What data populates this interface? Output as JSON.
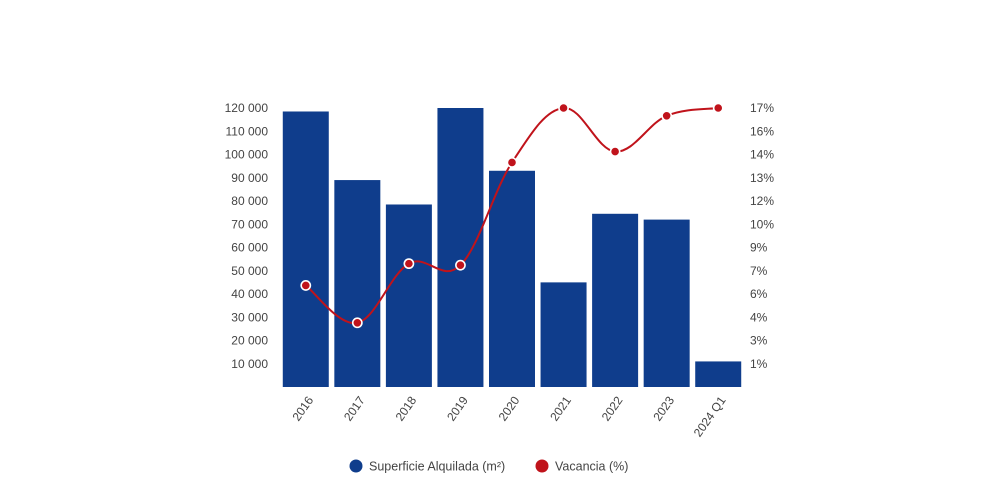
{
  "chart_data": {
    "type": "bar",
    "categories": [
      "2016",
      "2017",
      "2018",
      "2019",
      "2020",
      "2021",
      "2022",
      "2023",
      "2024 Q1"
    ],
    "series": [
      {
        "name": "Superficie Alquilada (m²)",
        "type": "bar",
        "axis": "left",
        "color": "#0f3d8c",
        "values": [
          118500,
          89000,
          78500,
          120000,
          93000,
          45000,
          74500,
          72000,
          11000
        ]
      },
      {
        "name": "Vacancia (%)",
        "type": "line",
        "axis": "right",
        "color": "#c0131b",
        "values": [
          5.6,
          3.2,
          7.0,
          6.9,
          13.5,
          17.0,
          14.2,
          16.5,
          17.0
        ]
      }
    ],
    "y_left": {
      "ticks": [
        10000,
        20000,
        30000,
        40000,
        50000,
        60000,
        70000,
        80000,
        90000,
        100000,
        110000,
        120000
      ],
      "tick_labels": [
        "10 000",
        "20 000",
        "30 000",
        "40 000",
        "50 000",
        "60 000",
        "70 000",
        "80 000",
        "90 000",
        "100 000",
        "110 000",
        "120 000"
      ],
      "ylim": [
        0,
        120000
      ]
    },
    "y_right": {
      "tick_labels": [
        "1%",
        "3%",
        "4%",
        "6%",
        "7%",
        "9%",
        "10%",
        "12%",
        "13%",
        "14%",
        "16%",
        "17%"
      ]
    },
    "grid": false,
    "legend_position": "bottom-center"
  }
}
